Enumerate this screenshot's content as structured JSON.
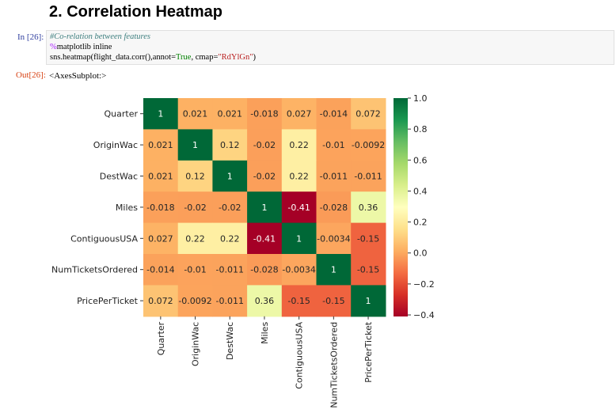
{
  "section_title": "2. Correlation Heatmap",
  "input_prompt": "In [26]:",
  "output_prompt": "Out[26]:",
  "code": {
    "line1": "#Co-relation between features",
    "line2_magic": "%",
    "line2_rest": "matplotlib inline",
    "line3_a": "sns.heatmap(flight_data.corr(),annot=",
    "line3_kw": "True",
    "line3_b": ", cmap=",
    "line3_str": "\"RdYlGn\"",
    "line3_c": ")"
  },
  "output_text": "<AxesSubplot:>",
  "chart_data": {
    "type": "heatmap",
    "cmap": "RdYlGn",
    "rows": [
      "Quarter",
      "OriginWac",
      "DestWac",
      "Miles",
      "ContiguousUSA",
      "NumTicketsOrdered",
      "PricePerTicket"
    ],
    "cols": [
      "Quarter",
      "OriginWac",
      "DestWac",
      "Miles",
      "ContiguousUSA",
      "NumTicketsOrdered",
      "PricePerTicket"
    ],
    "values": [
      [
        1,
        0.021,
        0.021,
        -0.018,
        0.027,
        -0.014,
        0.072
      ],
      [
        0.021,
        1,
        0.12,
        -0.02,
        0.22,
        -0.01,
        -0.0092
      ],
      [
        0.021,
        0.12,
        1,
        -0.02,
        0.22,
        -0.011,
        -0.011
      ],
      [
        -0.018,
        -0.02,
        -0.02,
        1,
        -0.41,
        -0.028,
        0.36
      ],
      [
        0.027,
        0.22,
        0.22,
        -0.41,
        1,
        -0.0034,
        -0.15
      ],
      [
        -0.014,
        -0.01,
        -0.011,
        -0.028,
        -0.0034,
        1,
        -0.15
      ],
      [
        0.072,
        -0.0092,
        -0.011,
        0.36,
        -0.15,
        -0.15,
        1
      ]
    ],
    "annotations": [
      [
        "1",
        "0.021",
        "0.021",
        "-0.018",
        "0.027",
        "-0.014",
        "0.072"
      ],
      [
        "0.021",
        "1",
        "0.12",
        "-0.02",
        "0.22",
        "-0.01",
        "-0.0092"
      ],
      [
        "0.021",
        "0.12",
        "1",
        "-0.02",
        "0.22",
        "-0.011",
        "-0.011"
      ],
      [
        "-0.018",
        "-0.02",
        "-0.02",
        "1",
        "-0.41",
        "-0.028",
        "0.36"
      ],
      [
        "0.027",
        "0.22",
        "0.22",
        "-0.41",
        "1",
        "-0.0034",
        "-0.15"
      ],
      [
        "-0.014",
        "-0.01",
        "-0.011",
        "-0.028",
        "-0.0034",
        "1",
        "-0.15"
      ],
      [
        "0.072",
        "-0.0092",
        "-0.011",
        "0.36",
        "-0.15",
        "-0.15",
        "1"
      ]
    ],
    "colorbar": {
      "range": [
        -0.41,
        1.0
      ],
      "ticks": [
        1.0,
        0.8,
        0.6,
        0.4,
        0.2,
        0.0,
        -0.2,
        -0.4
      ],
      "tick_labels": [
        "1.0",
        "0.8",
        "0.6",
        "0.4",
        "0.2",
        "0.0",
        "−0.2",
        "−0.4"
      ]
    }
  }
}
